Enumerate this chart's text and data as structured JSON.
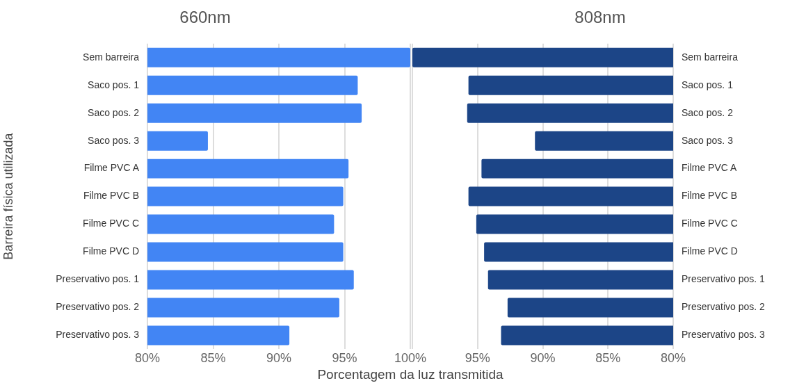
{
  "chart_data": [
    {
      "type": "bar",
      "orientation": "horizontal",
      "title": "660nm",
      "ylabel": "Barreira física utilizada",
      "xlabel": "Porcentagem da luz transmitida",
      "categories": [
        "Sem barreira",
        "Saco pos. 1",
        "Saco pos. 2",
        "Saco pos. 3",
        "Filme PVC A",
        "Filme PVC B",
        "Filme PVC C",
        "Filme PVC D",
        "Preservativo pos. 1",
        "Preservativo pos. 2",
        "Preservativo pos. 3"
      ],
      "values": [
        100,
        96.0,
        96.3,
        84.6,
        95.3,
        94.9,
        94.2,
        94.9,
        95.7,
        94.6,
        90.8
      ],
      "color": "#4285f4",
      "xlim": [
        80,
        100
      ],
      "xticks": [
        {
          "value": 80,
          "label": "80%"
        },
        {
          "value": 85,
          "label": "85%"
        },
        {
          "value": 90,
          "label": "90%"
        },
        {
          "value": 95,
          "label": "95%"
        },
        {
          "value": 100,
          "label": "100%"
        }
      ],
      "grid": "x",
      "legend": false
    },
    {
      "type": "bar",
      "orientation": "horizontal",
      "title": "808nm",
      "categories": [
        "Sem barreira",
        "Saco pos. 1",
        "Saco pos. 2",
        "Saco pos. 3",
        "Filme PVC A",
        "Filme PVC B",
        "Filme PVC C",
        "Filme PVC D",
        "Preservativo pos. 1",
        "Preservativo pos. 2",
        "Preservativo pos. 3"
      ],
      "values": [
        100,
        95.7,
        95.8,
        90.6,
        94.7,
        95.7,
        95.1,
        94.5,
        94.2,
        92.7,
        93.2
      ],
      "color": "#1c4587",
      "xlim": [
        100,
        80
      ],
      "xticks": [
        {
          "value": 100,
          "label": null
        },
        {
          "value": 95,
          "label": "95%"
        },
        {
          "value": 90,
          "label": "90%"
        },
        {
          "value": 85,
          "label": "85%"
        },
        {
          "value": 80,
          "label": "80%"
        }
      ],
      "grid": "x",
      "legend": false
    }
  ]
}
